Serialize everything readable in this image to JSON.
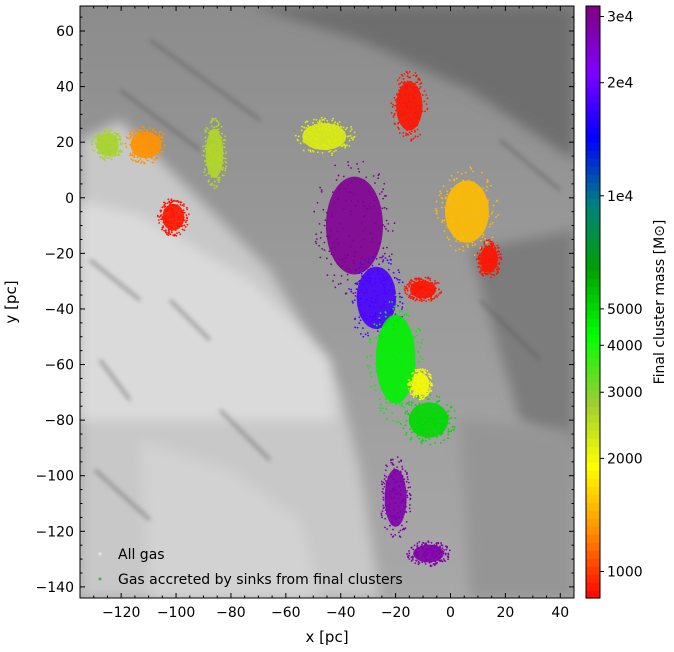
{
  "chart_data": {
    "type": "scatter",
    "xlabel": "x [pc]",
    "ylabel": "y [pc]",
    "xlim": [
      -135,
      45
    ],
    "ylim": [
      -144,
      69
    ],
    "xticks": [
      -120,
      -100,
      -80,
      -60,
      -40,
      -20,
      0,
      20,
      40
    ],
    "yticks": [
      60,
      40,
      20,
      0,
      -20,
      -40,
      -60,
      -80,
      -100,
      -120,
      -140
    ],
    "xtick_labels": [
      "−120",
      "−100",
      "−80",
      "−60",
      "−40",
      "−20",
      "0",
      "20",
      "40"
    ],
    "ytick_labels": [
      "60",
      "40",
      "20",
      "0",
      "−20",
      "−40",
      "−60",
      "−80",
      "−100",
      "−120",
      "−140"
    ],
    "legend": {
      "placement": "lower-left",
      "entries": [
        "All gas",
        "Gas accreted by sinks from final clusters"
      ]
    },
    "colorbar": {
      "label": "Final cluster mass [M⊙]",
      "scale": "log",
      "range": [
        850,
        32000
      ],
      "ticks": [
        1000,
        2000,
        3000,
        4000,
        5000,
        10000,
        20000,
        30000
      ],
      "tick_labels": [
        "1000",
        "2000",
        "3000",
        "4000",
        "5000",
        "1e4",
        "2e4",
        "3e4"
      ],
      "colormap": [
        "#ff0000",
        "#ff8c00",
        "#ffff00",
        "#9acd32",
        "#00ff00",
        "#00a000",
        "#008080",
        "#0000ff",
        "#8000ff",
        "#800080"
      ]
    },
    "clusters": [
      {
        "x": -125,
        "y": 19,
        "rx": 5,
        "ry": 5,
        "mass": 2700
      },
      {
        "x": -111,
        "y": 19,
        "rx": 7,
        "ry": 6,
        "mass": 1300
      },
      {
        "x": -86,
        "y": 16,
        "rx": 4,
        "ry": 11,
        "mass": 2600
      },
      {
        "x": -101,
        "y": -7,
        "rx": 5,
        "ry": 6,
        "mass": 900
      },
      {
        "x": -15,
        "y": 33,
        "rx": 6,
        "ry": 11,
        "mass": 900
      },
      {
        "x": -46,
        "y": 22,
        "rx": 10,
        "ry": 6,
        "mass": 2200
      },
      {
        "x": -35,
        "y": -10,
        "rx": 13,
        "ry": 22,
        "mass": 30000
      },
      {
        "x": -27,
        "y": -36,
        "rx": 9,
        "ry": 14,
        "mass": 18000
      },
      {
        "x": -20,
        "y": -58,
        "rx": 9,
        "ry": 20,
        "mass": 4500
      },
      {
        "x": -8,
        "y": -80,
        "rx": 9,
        "ry": 8,
        "mass": 5000
      },
      {
        "x": -11,
        "y": -67,
        "rx": 4,
        "ry": 5,
        "mass": 2000
      },
      {
        "x": -10,
        "y": -33,
        "rx": 6,
        "ry": 4,
        "mass": 900
      },
      {
        "x": 6,
        "y": -5,
        "rx": 10,
        "ry": 14,
        "mass": 1500
      },
      {
        "x": 14,
        "y": -22,
        "rx": 4,
        "ry": 6,
        "mass": 900
      },
      {
        "x": -20,
        "y": -108,
        "rx": 5,
        "ry": 13,
        "mass": 28000
      },
      {
        "x": -8,
        "y": -128,
        "rx": 7,
        "ry": 4,
        "mass": 28000
      }
    ]
  }
}
